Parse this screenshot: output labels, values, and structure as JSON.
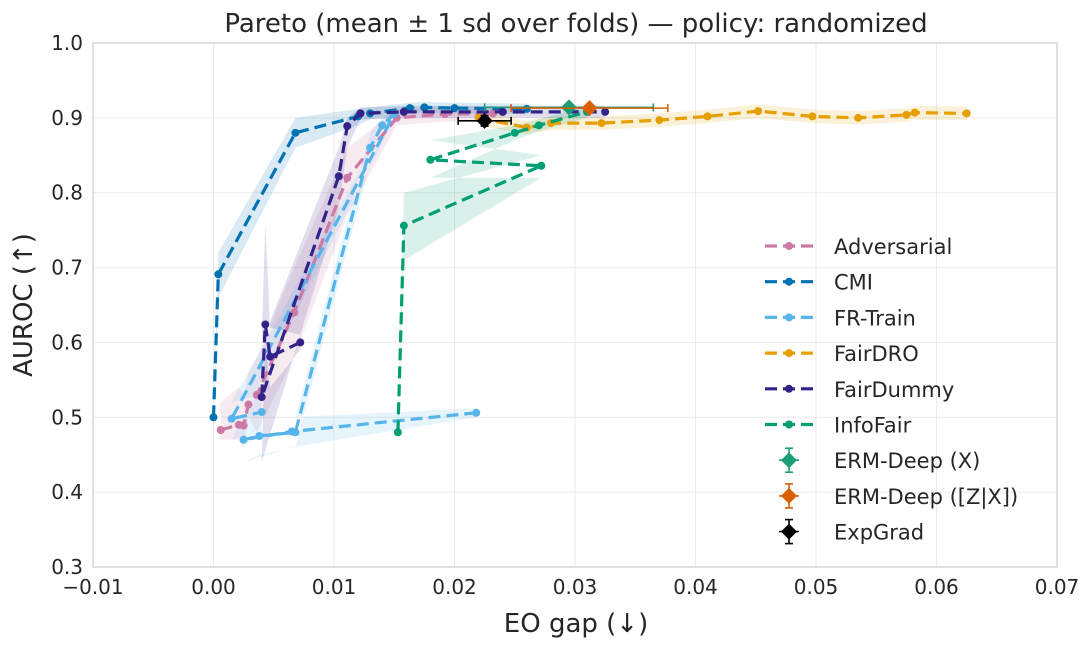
{
  "chart_data": {
    "type": "line",
    "title": "Pareto (mean ± 1 sd over folds) — policy: randomized",
    "xlabel": "EO gap (↓)",
    "ylabel": "AUROC (↑)",
    "xlim": [
      -0.01,
      0.07
    ],
    "ylim": [
      0.3,
      1.0
    ],
    "xticks": [
      -0.01,
      0.0,
      0.01,
      0.02,
      0.03,
      0.04,
      0.05,
      0.06,
      0.07
    ],
    "xtick_labels": [
      "−0.01",
      "0.00",
      "0.01",
      "0.02",
      "0.03",
      "0.04",
      "0.05",
      "0.06",
      "0.07"
    ],
    "yticks": [
      0.3,
      0.4,
      0.5,
      0.6,
      0.7,
      0.8,
      0.9,
      1.0
    ],
    "ytick_labels": [
      "0.3",
      "0.4",
      "0.5",
      "0.6",
      "0.7",
      "0.8",
      "0.9",
      "1.0"
    ],
    "grid": true,
    "legend_position": "center-right",
    "series": [
      {
        "name": "Adversarial",
        "color": "#cc79a7",
        "x": [
          0.0006,
          0.0021,
          0.0025,
          0.0029,
          0.0036,
          0.0067,
          0.0111,
          0.0152,
          0.0192,
          0.0232
        ],
        "y": [
          0.483,
          0.49,
          0.489,
          0.517,
          0.53,
          0.64,
          0.82,
          0.9,
          0.905,
          0.906
        ],
        "band_low": [
          0.47,
          0.47,
          0.46,
          0.5,
          0.48,
          0.58,
          0.77,
          0.89,
          0.895,
          0.896
        ],
        "band_high": [
          0.52,
          0.54,
          0.53,
          0.56,
          0.58,
          0.7,
          0.86,
          0.912,
          0.915,
          0.916
        ]
      },
      {
        "name": "CMI",
        "color": "#0072b2",
        "x": [
          0.0,
          0.0004,
          0.0068,
          0.012,
          0.013,
          0.0163,
          0.0175,
          0.02,
          0.026
        ],
        "y": [
          0.5,
          0.691,
          0.88,
          0.902,
          0.906,
          0.913,
          0.914,
          0.913,
          0.912
        ],
        "band_low": [
          0.49,
          0.66,
          0.86,
          0.89,
          0.898,
          0.906,
          0.907,
          0.906,
          0.905
        ],
        "band_high": [
          0.51,
          0.72,
          0.9,
          0.912,
          0.914,
          0.92,
          0.921,
          0.92,
          0.919
        ]
      },
      {
        "name": "FR-Train",
        "color": "#56b4e9",
        "x": [
          0.0218,
          0.0065,
          0.0025,
          0.0038,
          0.0068,
          0.013,
          0.014,
          0.015,
          0.0015,
          0.004
        ],
        "y": [
          0.506,
          0.481,
          0.47,
          0.475,
          0.48,
          0.86,
          0.89,
          0.905,
          0.498,
          0.507
        ],
        "band_low": [
          0.5,
          0.46,
          0.44,
          0.45,
          0.46,
          0.84,
          0.88,
          0.898,
          0.47,
          0.48
        ],
        "band_high": [
          0.512,
          0.5,
          0.5,
          0.5,
          0.5,
          0.88,
          0.9,
          0.912,
          0.52,
          0.53
        ]
      },
      {
        "name": "FairDRO",
        "color": "#e69f00",
        "x": [
          0.022,
          0.026,
          0.028,
          0.0322,
          0.037,
          0.041,
          0.0452,
          0.0497,
          0.0535,
          0.0575,
          0.0582,
          0.0625
        ],
        "y": [
          0.9,
          0.887,
          0.893,
          0.893,
          0.897,
          0.902,
          0.909,
          0.902,
          0.9,
          0.904,
          0.907,
          0.906
        ],
        "band_low": [
          0.89,
          0.878,
          0.884,
          0.884,
          0.888,
          0.893,
          0.9,
          0.893,
          0.891,
          0.895,
          0.898,
          0.897
        ],
        "band_high": [
          0.91,
          0.896,
          0.902,
          0.902,
          0.906,
          0.911,
          0.918,
          0.911,
          0.909,
          0.913,
          0.916,
          0.915
        ]
      },
      {
        "name": "FairDummy",
        "color": "#332288",
        "x": [
          0.0072,
          0.0047,
          0.0043,
          0.004,
          0.0104,
          0.0111,
          0.0122,
          0.0158,
          0.024,
          0.0325
        ],
        "y": [
          0.6,
          0.581,
          0.624,
          0.527,
          0.822,
          0.889,
          0.906,
          0.908,
          0.908,
          0.908
        ],
        "band_low": [
          0.59,
          0.54,
          0.6,
          0.44,
          0.78,
          0.86,
          0.898,
          0.9,
          0.9,
          0.9
        ],
        "band_high": [
          0.61,
          0.62,
          0.76,
          0.6,
          0.86,
          0.9,
          0.914,
          0.916,
          0.916,
          0.916
        ]
      },
      {
        "name": "InfoFair",
        "color": "#009e73",
        "x": [
          0.0153,
          0.0158,
          0.0272,
          0.018,
          0.025,
          0.027,
          0.031
        ],
        "y": [
          0.48,
          0.756,
          0.836,
          0.844,
          0.88,
          0.89,
          0.908
        ],
        "band_low": [
          0.47,
          0.71,
          0.82,
          0.82,
          0.87,
          0.882,
          0.9
        ],
        "band_high": [
          0.49,
          0.8,
          0.85,
          0.87,
          0.89,
          0.898,
          0.916
        ]
      }
    ],
    "errorbar_points": [
      {
        "name": "ERM-Deep (X)",
        "color": "#1b9e77",
        "marker": "diamond",
        "x": 0.0295,
        "y": 0.914,
        "xerr": 0.007,
        "yerr": 0.003
      },
      {
        "name": "ERM-Deep ([Z|X])",
        "color": "#d95f02",
        "marker": "diamond",
        "x": 0.0312,
        "y": 0.913,
        "xerr": 0.0065,
        "yerr": 0.003
      },
      {
        "name": "ExpGrad",
        "color": "#000000",
        "marker": "diamond",
        "x": 0.0225,
        "y": 0.896,
        "xerr": 0.0022,
        "yerr": 0.007
      }
    ]
  }
}
